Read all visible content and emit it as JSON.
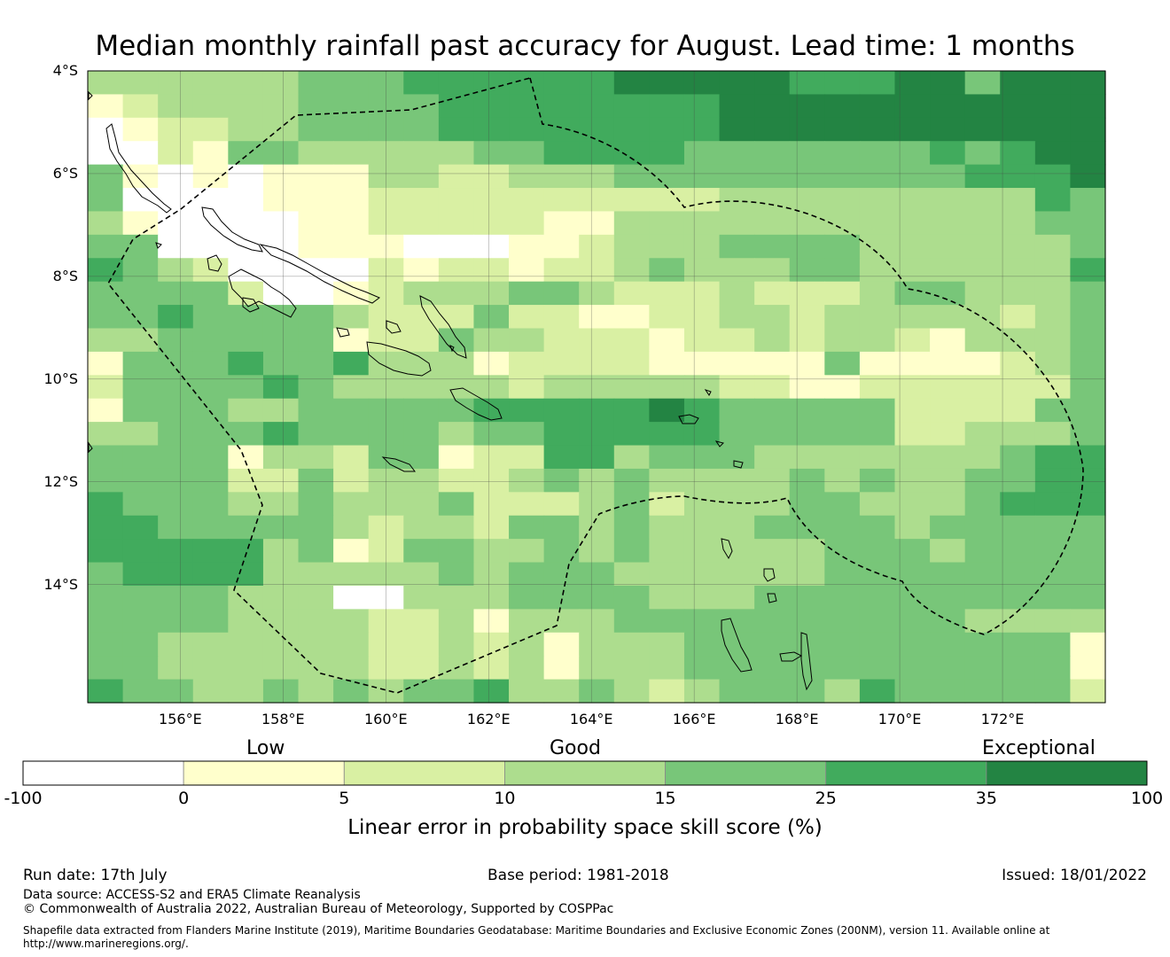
{
  "title": "Median monthly rainfall past accuracy for August. Lead time: 1 months",
  "map": {
    "lat_labels": [
      "4°S",
      "6°S",
      "8°S",
      "10°S",
      "12°S",
      "14°S"
    ],
    "lon_labels": [
      "156°E",
      "158°E",
      "160°E",
      "162°E",
      "164°E",
      "166°E",
      "168°E",
      "170°E",
      "172°E"
    ],
    "lon_range": [
      154.2,
      174.0
    ],
    "lat_range": [
      -4.0,
      -16.3
    ],
    "grid_step_deg": 0.83,
    "land_outline_color": "#000000",
    "eez_line": "dashed"
  },
  "legend": {
    "categories": [
      "Low",
      "Good",
      "Exceptional"
    ],
    "ticks": [
      "-100",
      "0",
      "5",
      "10",
      "15",
      "25",
      "35",
      "100"
    ],
    "colors": [
      "#ffffff",
      "#ffffcc",
      "#d9f0a3",
      "#addd8e",
      "#78c679",
      "#41ab5d",
      "#238443"
    ],
    "title": "Linear error in probability space skill score (%)"
  },
  "footer": {
    "run_date": "Run date: 17th July",
    "base_period": "Base period: 1981-2018",
    "issued": "Issued: 18/01/2022",
    "data_source": "Data source: ACCESS-S2 and ERA5 Climate Reanalysis",
    "copyright": "© Commonwealth of Australia 2022, Australian Bureau of Meteorology, Supported by COSPPac",
    "shapefile": "Shapefile data extracted from Flanders Marine Institute (2019), Maritime Boundaries Geodatabase: Maritime Boundaries and Exclusive Economic Zones (200NM), version 11. Available online at http://www.marineregions.org/."
  },
  "skill_grid": [
    "33333344455555566666555664666",
    "12333344445555555566666666666",
    "01223344445555555566666666666",
    "00214433333445555444444454566",
    "41010111332233344444444445556",
    "40000111222222222233333333354",
    "31000011222221133333333333344",
    "44000011100011233344443333334",
    "54320000212212234333443333335",
    "44442001233344322232223443334",
    "44544443222422112233233333234",
    "33444441224332221223233213334",
    "14445445333122221111141111234",
    "24444543333323333322112222224",
    "14443344444555556544444222244",
    "33444544443445555544444223334",
    "44441332441225534443333333455",
    "44442242332234343333434334455",
    "54443343334222342333443334555",
    "55444443233244343334444344444",
    "55555341244334343333344434444",
    "45555333334344433333344444444",
    "44443330033344443334444444444",
    "44443333223133344444444443333",
    "44333333223231333444444444441",
    "44333333223231333444444444441",
    "54433434344533432344435444442"
  ]
}
